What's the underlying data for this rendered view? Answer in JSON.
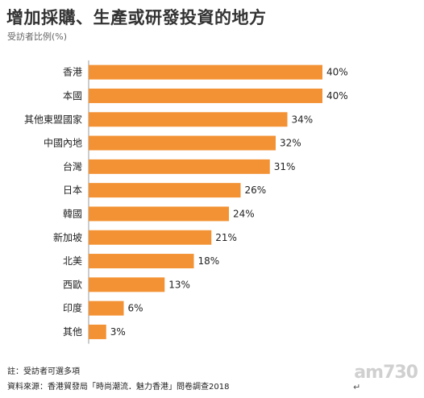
{
  "title": "增加採購、生產或研發投資的地方",
  "subtitle": "受訪者比例(%)",
  "chart_data": {
    "type": "bar",
    "orientation": "horizontal",
    "title": "增加採購、生產或研發投資的地方",
    "subtitle": "受訪者比例(%)",
    "categories": [
      "香港",
      "本國",
      "其他東盟國家",
      "中國內地",
      "台灣",
      "日本",
      "韓國",
      "新加坡",
      "北美",
      "西歐",
      "印度",
      "其他"
    ],
    "values": [
      40,
      40,
      34,
      32,
      31,
      26,
      24,
      21,
      18,
      13,
      6,
      3
    ],
    "value_labels": [
      "40%",
      "40%",
      "34%",
      "32%",
      "31%",
      "26%",
      "24%",
      "21%",
      "18%",
      "13%",
      "6%",
      "3%"
    ],
    "xlim": [
      0,
      40
    ],
    "bar_color": "#f39234",
    "axis_color": "#999999",
    "grid": false
  },
  "footer": {
    "note": "註：受訪者可選多項",
    "source": "資料來源：香港貿發局「時尚潮流．魅力香港」問卷調查2018"
  },
  "watermark": "am730"
}
